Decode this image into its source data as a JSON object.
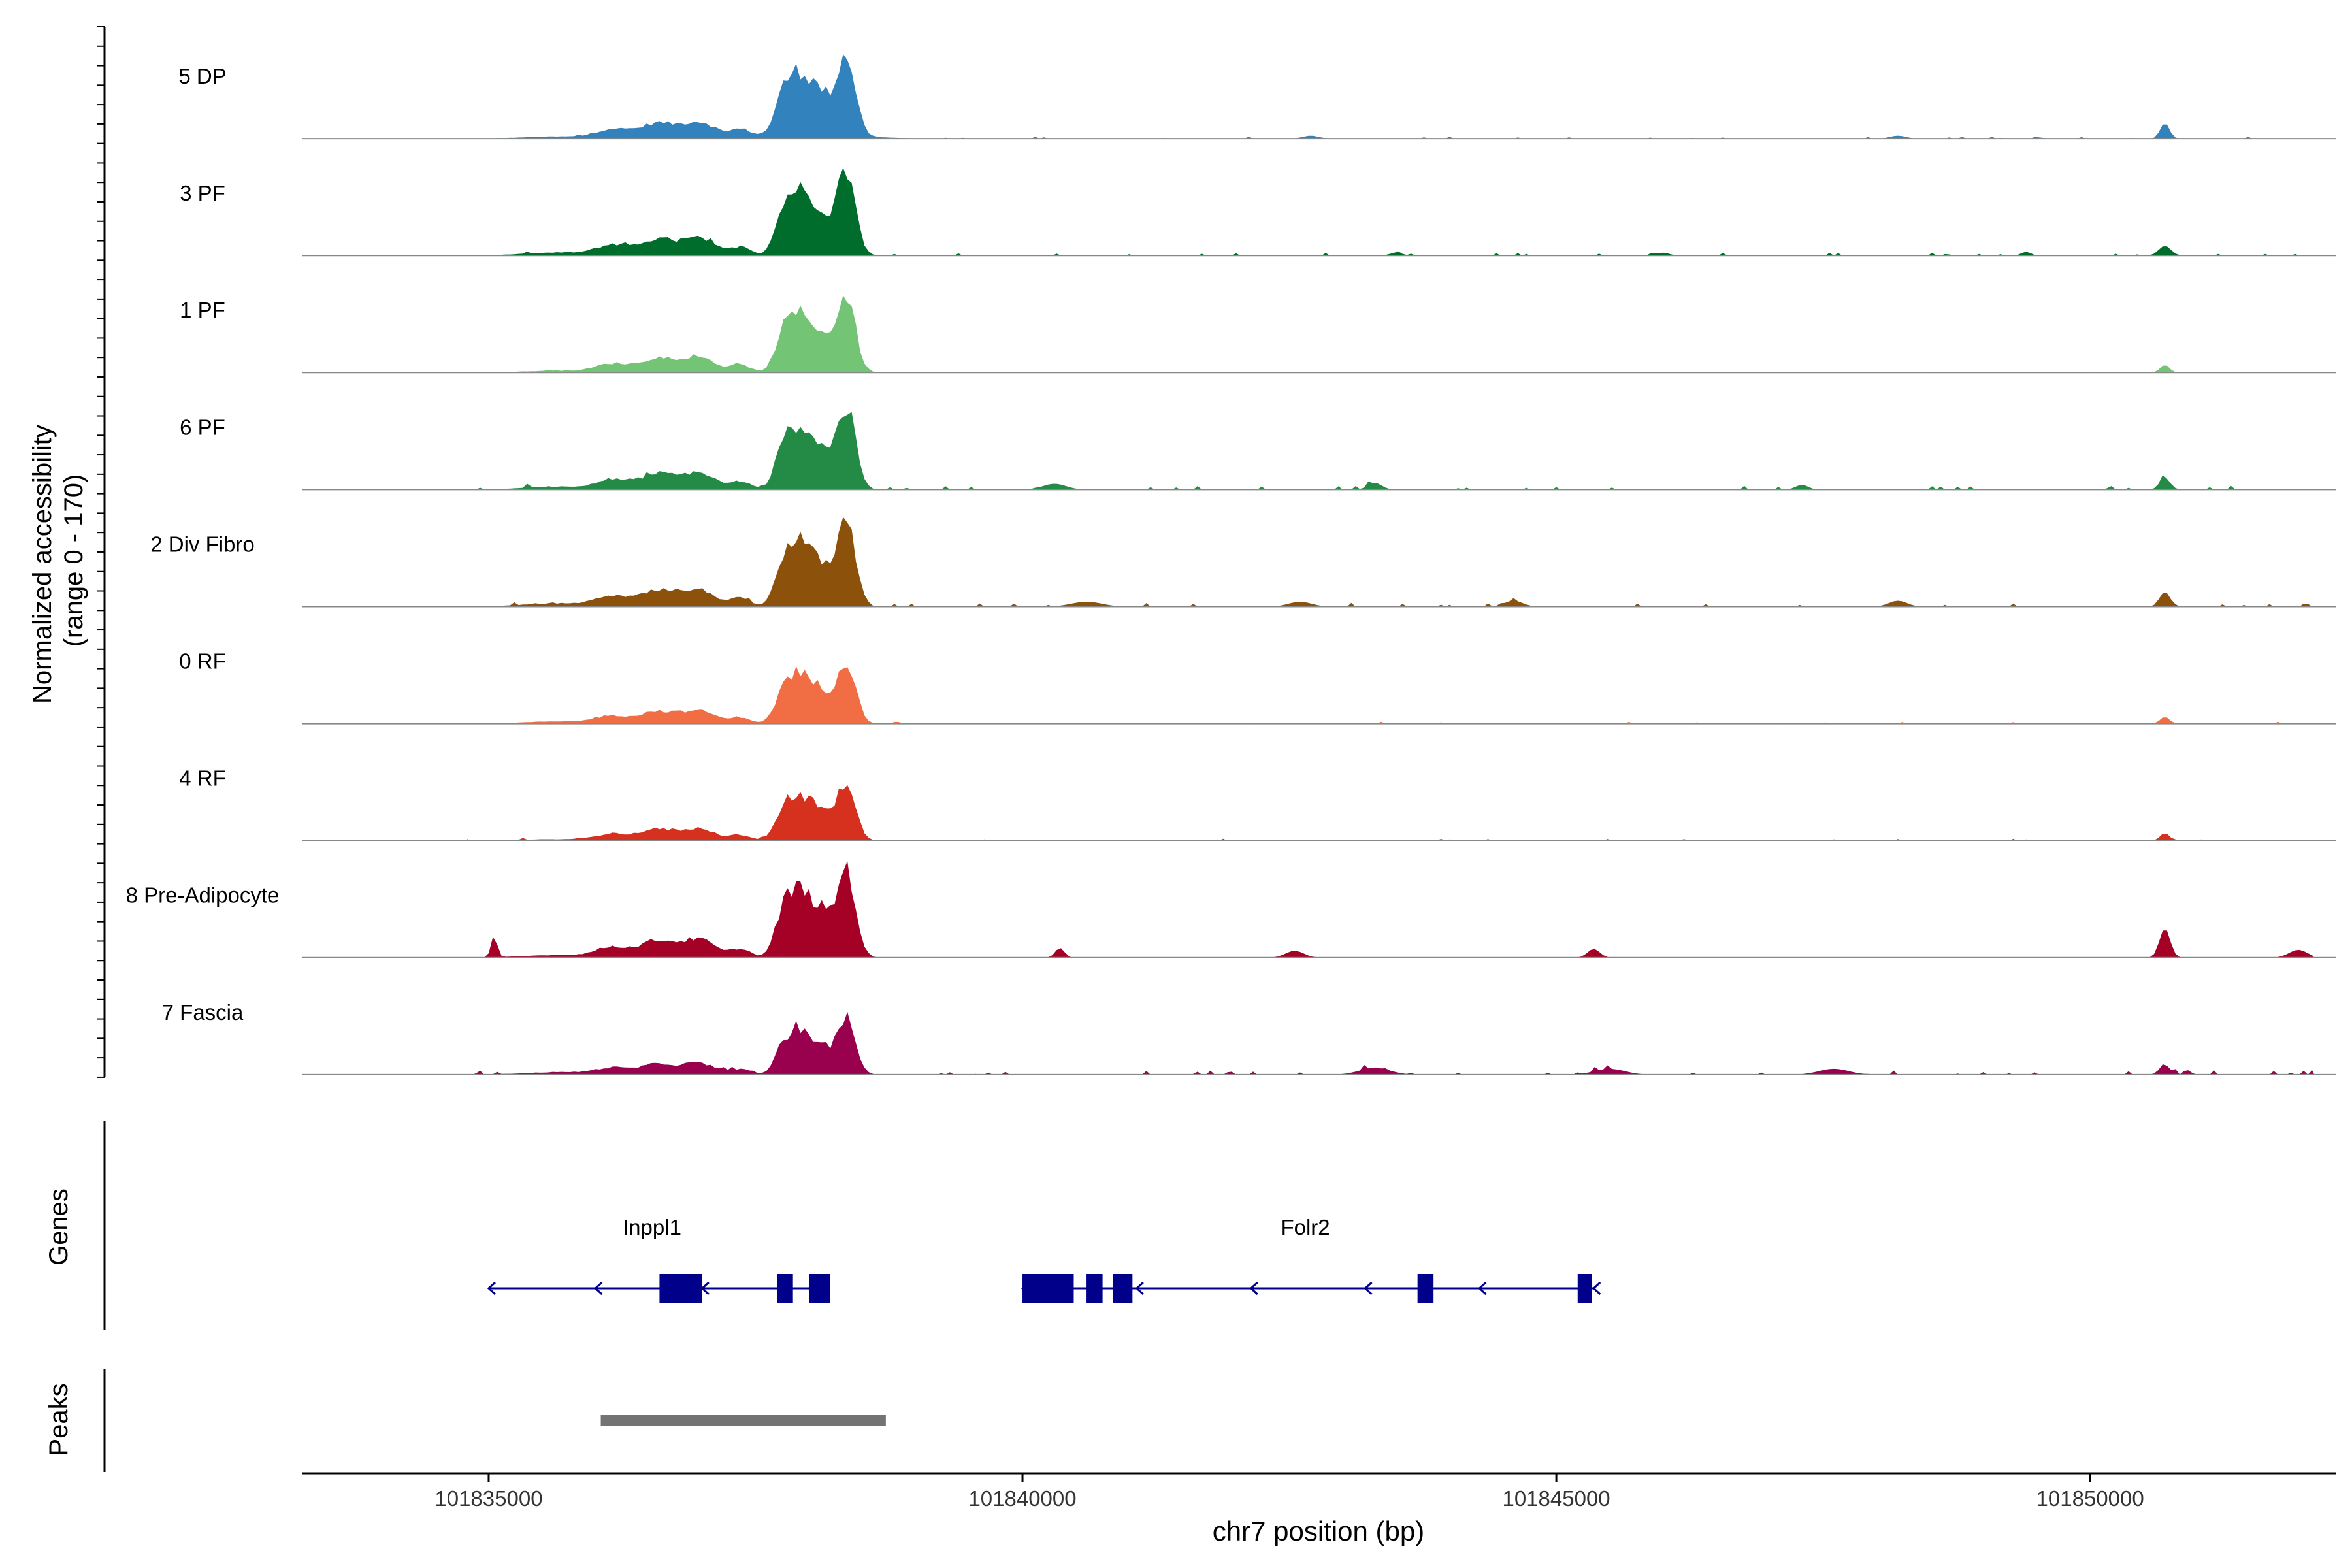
{
  "chart_data": {
    "type": "area",
    "title": "",
    "ylabel_line1": "Normalized accessibility",
    "ylabel_line2": "(range 0 - 170)",
    "xlabel": "chr7 position (bp)",
    "xlim": [
      101833250,
      101852300
    ],
    "x_ticks": [
      101835000,
      101840000,
      101845000,
      101850000
    ],
    "x_tick_labels": [
      "101835000",
      "101840000",
      "101845000",
      "101850000"
    ],
    "ylim": [
      0,
      170
    ],
    "tracks": [
      {
        "name": "5 DP",
        "color": "#3182BD",
        "scale": 0.9,
        "tail": 0.25,
        "bumps": [
          [
            101850700,
            0.16,
            60
          ],
          [
            101838000,
            0.05,
            600
          ],
          [
            101842700,
            0.03,
            100
          ],
          [
            101848200,
            0.03,
            100
          ]
        ],
        "noise": 0.02
      },
      {
        "name": "3 PF",
        "color": "#006D2C",
        "scale": 0.95,
        "tail": 0.35,
        "bumps": [
          [
            101850700,
            0.1,
            80
          ],
          [
            101849400,
            0.04,
            60
          ],
          [
            101843500,
            0.03,
            80
          ],
          [
            101846000,
            0.03,
            80
          ]
        ],
        "noise": 0.03
      },
      {
        "name": "1 PF",
        "color": "#74C476",
        "scale": 0.85,
        "tail": 0.25,
        "bumps": [
          [
            101850700,
            0.08,
            60
          ]
        ],
        "noise": 0.01
      },
      {
        "name": "6 PF",
        "color": "#238B45",
        "scale": 0.92,
        "tail": 0.35,
        "bumps": [
          [
            101850700,
            0.12,
            70
          ],
          [
            101843300,
            0.07,
            90
          ],
          [
            101840300,
            0.06,
            150
          ],
          [
            101847300,
            0.05,
            80
          ]
        ],
        "noise": 0.04
      },
      {
        "name": "2 Div Fibro",
        "color": "#8C510A",
        "scale": 0.92,
        "tail": 0.4,
        "bumps": [
          [
            101850700,
            0.15,
            70
          ],
          [
            101844600,
            0.06,
            120
          ],
          [
            101848200,
            0.06,
            120
          ],
          [
            101840600,
            0.05,
            200
          ],
          [
            101842600,
            0.05,
            150
          ]
        ],
        "noise": 0.04
      },
      {
        "name": "0 RF",
        "color": "#F16D43",
        "scale": 0.72,
        "tail": 0.35,
        "bumps": [
          [
            101850700,
            0.07,
            60
          ]
        ],
        "noise": 0.02
      },
      {
        "name": "4 RF",
        "color": "#D6301F",
        "scale": 0.66,
        "tail": 0.25,
        "bumps": [
          [
            101850700,
            0.08,
            60
          ]
        ],
        "noise": 0.02
      },
      {
        "name": "8 Pre-Adipocyte",
        "color": "#A50026",
        "scale": 1.0,
        "tail": 0.3,
        "bumps": [
          [
            101850700,
            0.3,
            70
          ],
          [
            101835050,
            0.22,
            40
          ],
          [
            101840350,
            0.1,
            60
          ],
          [
            101842550,
            0.07,
            120
          ],
          [
            101845350,
            0.09,
            80
          ],
          [
            101851950,
            0.08,
            120
          ]
        ],
        "noise": 0.0
      },
      {
        "name": "7 Fascia",
        "color": "#99004E",
        "scale": 0.62,
        "tail": 0.45,
        "bumps": [
          [
            101850700,
            0.1,
            70
          ],
          [
            101843300,
            0.07,
            200
          ],
          [
            101845500,
            0.06,
            200
          ],
          [
            101847600,
            0.06,
            200
          ]
        ],
        "noise": 0.05
      }
    ],
    "genes_label": "Genes",
    "peaks_label": "Peaks",
    "genes": [
      {
        "name": "Inppl1",
        "start": 101835000,
        "end": 101838000,
        "strand": "-",
        "exons": [
          [
            101836600,
            101837000
          ],
          [
            101837700,
            101837850
          ],
          [
            101838000,
            101838200
          ]
        ]
      },
      {
        "name": "Folr2",
        "start": 101840000,
        "end": 101845350,
        "strand": "-",
        "exons": [
          [
            101840000,
            101840480
          ],
          [
            101840600,
            101840750
          ],
          [
            101840850,
            101841030
          ],
          [
            101843700,
            101843850
          ],
          [
            101845200,
            101845330
          ]
        ]
      }
    ],
    "peaks": [
      [
        101836050,
        101838720
      ]
    ]
  },
  "colors": {
    "axis": "#000000",
    "baseline": "#888888",
    "gene": "#00008B",
    "peak": "#737373"
  }
}
